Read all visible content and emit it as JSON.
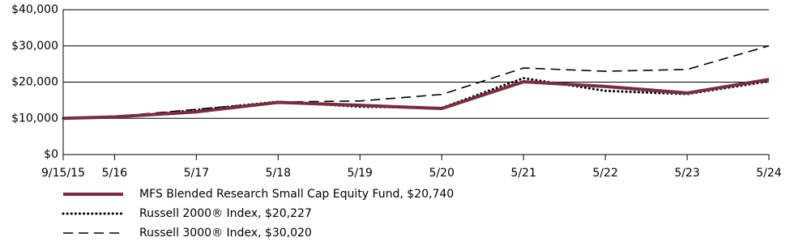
{
  "chart_data": {
    "type": "line",
    "x": [
      "9/15/15",
      "5/16",
      "5/17",
      "5/18",
      "5/19",
      "5/20",
      "5/21",
      "5/22",
      "5/23",
      "5/24"
    ],
    "series": [
      {
        "name": "MFS Blended Research Small Cap Equity Fund, $20,740",
        "color": "#7b2d3f",
        "style": "solid",
        "values": [
          10000,
          10400,
          11800,
          14400,
          13600,
          12700,
          20100,
          18800,
          17000,
          20740
        ]
      },
      {
        "name": "Russell 2000® Index, $20,227",
        "color": "#000000",
        "style": "dotted",
        "values": [
          10000,
          10200,
          12300,
          14600,
          13200,
          12900,
          21100,
          17600,
          16700,
          20227
        ]
      },
      {
        "name": "Russell 3000® Index, $30,020",
        "color": "#000000",
        "style": "dashed",
        "values": [
          10000,
          10500,
          12500,
          14500,
          14800,
          16600,
          23900,
          23000,
          23500,
          30020
        ]
      }
    ],
    "ylim": [
      0,
      40000
    ],
    "yticks": [
      {
        "value": 0,
        "label": "$0"
      },
      {
        "value": 10000,
        "label": "$10,000"
      },
      {
        "value": 20000,
        "label": "$20,000"
      },
      {
        "value": 30000,
        "label": "$30,000"
      },
      {
        "value": 40000,
        "label": "$40,000"
      }
    ],
    "grid": true
  }
}
